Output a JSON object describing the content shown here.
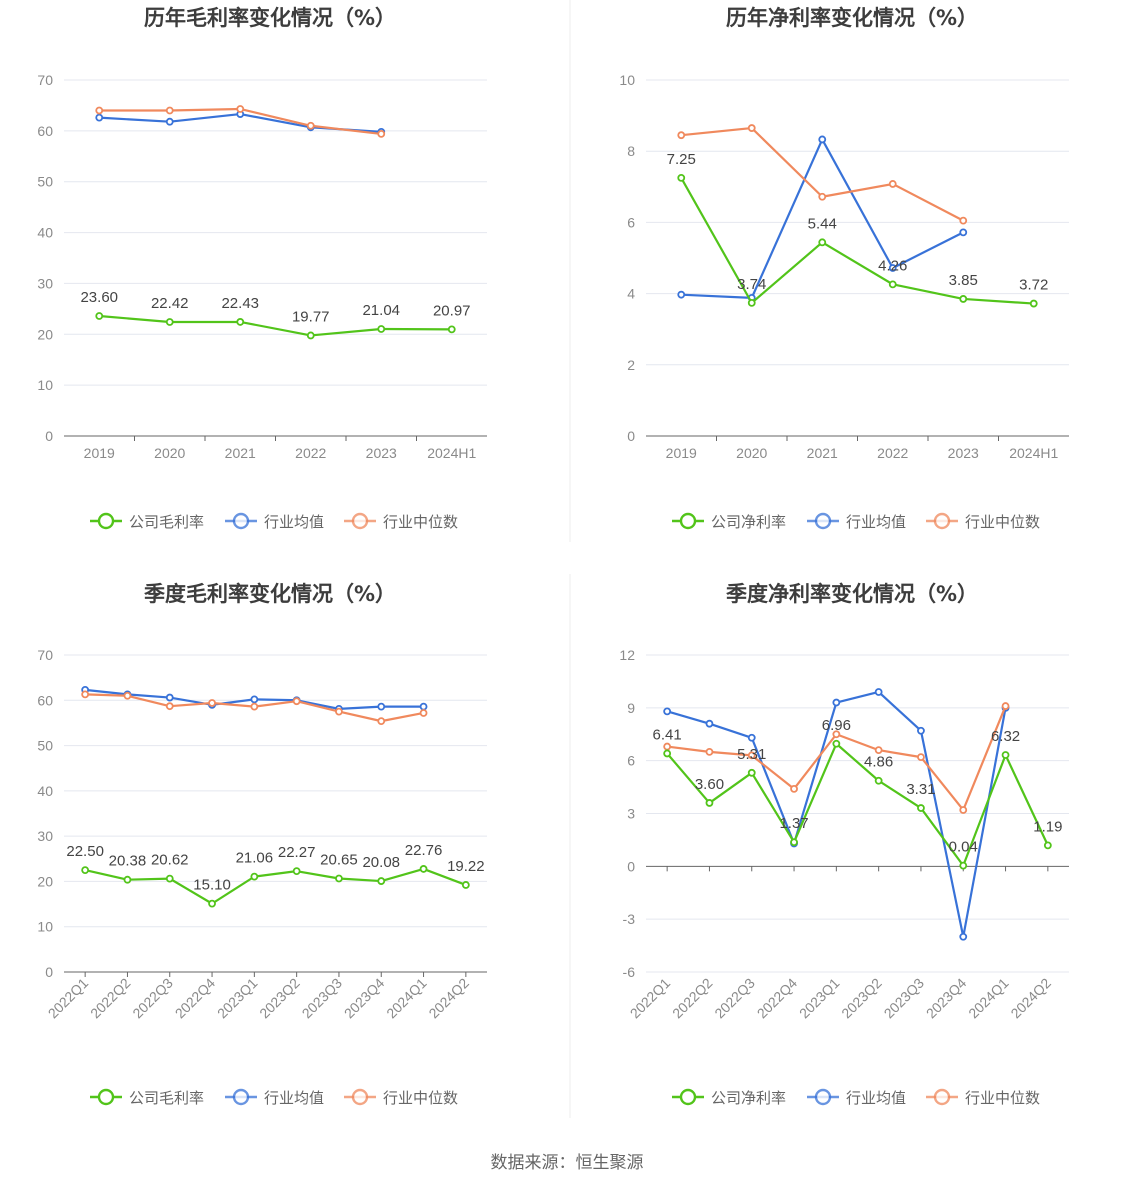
{
  "source": "数据来源：恒生聚源",
  "colors": {
    "company": "#52c41a",
    "avg": "#3872d8",
    "median": "#f0895d",
    "grid": "#e4e7ef",
    "axis": "#666666"
  },
  "chart_data": [
    {
      "type": "line",
      "title": "历年毛利率变化情况（%）",
      "categories": [
        "2019",
        "2020",
        "2021",
        "2022",
        "2023",
        "2024H1"
      ],
      "ylim": [
        0,
        70
      ],
      "yticks": [
        "0",
        "10",
        "20",
        "30",
        "40",
        "50",
        "60",
        "70"
      ],
      "series": [
        {
          "name": "公司毛利率",
          "key": "company",
          "values": [
            23.6,
            22.42,
            22.43,
            19.77,
            21.04,
            20.97
          ],
          "labels": [
            "23.60",
            "22.42",
            "22.43",
            "19.77",
            "21.04",
            "20.97"
          ]
        },
        {
          "name": "行业均值",
          "key": "avg",
          "values": [
            62.6,
            61.8,
            63.3,
            60.7,
            59.8,
            null
          ]
        },
        {
          "name": "行业中位数",
          "key": "median",
          "values": [
            64.0,
            64.0,
            64.3,
            61.0,
            59.4,
            null
          ]
        }
      ]
    },
    {
      "type": "line",
      "title": "历年净利率变化情况（%）",
      "categories": [
        "2019",
        "2020",
        "2021",
        "2022",
        "2023",
        "2024H1"
      ],
      "ylim": [
        0,
        10
      ],
      "yticks": [
        "0",
        "2",
        "4",
        "6",
        "8",
        "10"
      ],
      "series": [
        {
          "name": "公司净利率",
          "key": "company",
          "values": [
            7.25,
            3.74,
            5.44,
            4.26,
            3.85,
            3.72
          ],
          "labels": [
            "7.25",
            "3.74",
            "5.44",
            "4.26",
            "3.85",
            "3.72"
          ]
        },
        {
          "name": "行业均值",
          "key": "avg",
          "values": [
            3.97,
            3.88,
            8.33,
            4.72,
            5.72,
            null
          ]
        },
        {
          "name": "行业中位数",
          "key": "median",
          "values": [
            8.45,
            8.65,
            6.72,
            7.08,
            6.05,
            null
          ]
        }
      ]
    },
    {
      "type": "line",
      "title": "季度毛利率变化情况（%）",
      "categories": [
        "2022Q1",
        "2022Q2",
        "2022Q3",
        "2022Q4",
        "2023Q1",
        "2023Q2",
        "2023Q3",
        "2023Q4",
        "2024Q1",
        "2024Q2"
      ],
      "ylim": [
        0,
        70
      ],
      "yticks": [
        "0",
        "10",
        "20",
        "30",
        "40",
        "50",
        "60",
        "70"
      ],
      "series": [
        {
          "name": "公司毛利率",
          "key": "company",
          "values": [
            22.5,
            20.38,
            20.62,
            15.1,
            21.06,
            22.27,
            20.65,
            20.08,
            22.76,
            19.22
          ],
          "labels": [
            "22.50",
            "20.38",
            "20.62",
            "15.10",
            "21.06",
            "22.27",
            "20.65",
            "20.08",
            "22.76",
            "19.22"
          ]
        },
        {
          "name": "行业均值",
          "key": "avg",
          "values": [
            62.3,
            61.3,
            60.6,
            59.0,
            60.2,
            60.0,
            58.1,
            58.6,
            58.6,
            null
          ]
        },
        {
          "name": "行业中位数",
          "key": "median",
          "values": [
            61.3,
            61.0,
            58.7,
            59.4,
            58.6,
            59.8,
            57.5,
            55.4,
            57.2,
            null
          ]
        }
      ]
    },
    {
      "type": "line",
      "title": "季度净利率变化情况（%）",
      "categories": [
        "2022Q1",
        "2022Q2",
        "2022Q3",
        "2022Q4",
        "2023Q1",
        "2023Q2",
        "2023Q3",
        "2023Q4",
        "2024Q1",
        "2024Q2"
      ],
      "ylim": [
        -6,
        12
      ],
      "yticks": [
        "-6",
        "-3",
        "0",
        "3",
        "6",
        "9",
        "12"
      ],
      "series": [
        {
          "name": "公司净利率",
          "key": "company",
          "values": [
            6.41,
            3.6,
            5.31,
            1.37,
            6.96,
            4.86,
            3.31,
            0.04,
            6.32,
            1.19
          ],
          "labels": [
            "6.41",
            "3.60",
            "5.31",
            "1.37",
            "6.96",
            "4.86",
            "3.31",
            "0.04",
            "6.32",
            "1.19"
          ]
        },
        {
          "name": "行业均值",
          "key": "avg",
          "values": [
            8.8,
            8.1,
            7.3,
            1.3,
            9.3,
            9.9,
            7.7,
            -4.0,
            9.0,
            null
          ]
        },
        {
          "name": "行业中位数",
          "key": "median",
          "values": [
            6.8,
            6.5,
            6.3,
            4.4,
            7.5,
            6.6,
            6.2,
            3.2,
            9.1,
            null
          ]
        }
      ]
    }
  ]
}
